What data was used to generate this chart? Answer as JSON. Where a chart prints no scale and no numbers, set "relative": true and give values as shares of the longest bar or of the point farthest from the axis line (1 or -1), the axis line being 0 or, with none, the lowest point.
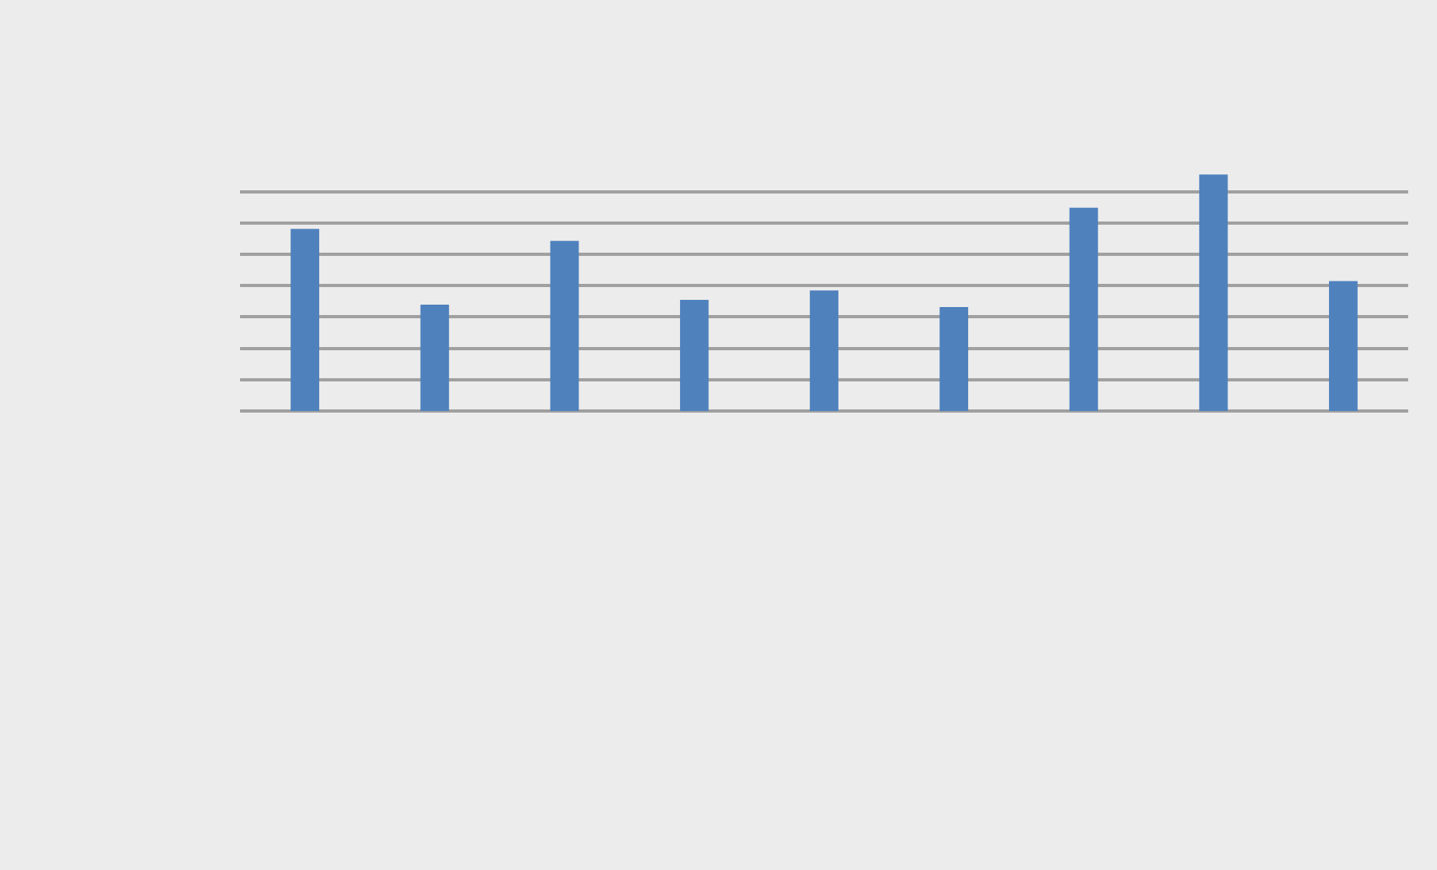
{
  "chart_data": {
    "type": "bar",
    "relative": true,
    "categories": [
      null,
      null,
      null,
      null,
      null,
      null,
      null,
      null,
      null
    ],
    "values": [
      0.77,
      0.45,
      0.72,
      0.47,
      0.51,
      0.44,
      0.86,
      1,
      0.55
    ],
    "color": "#4f81bd",
    "grid": "y"
  }
}
